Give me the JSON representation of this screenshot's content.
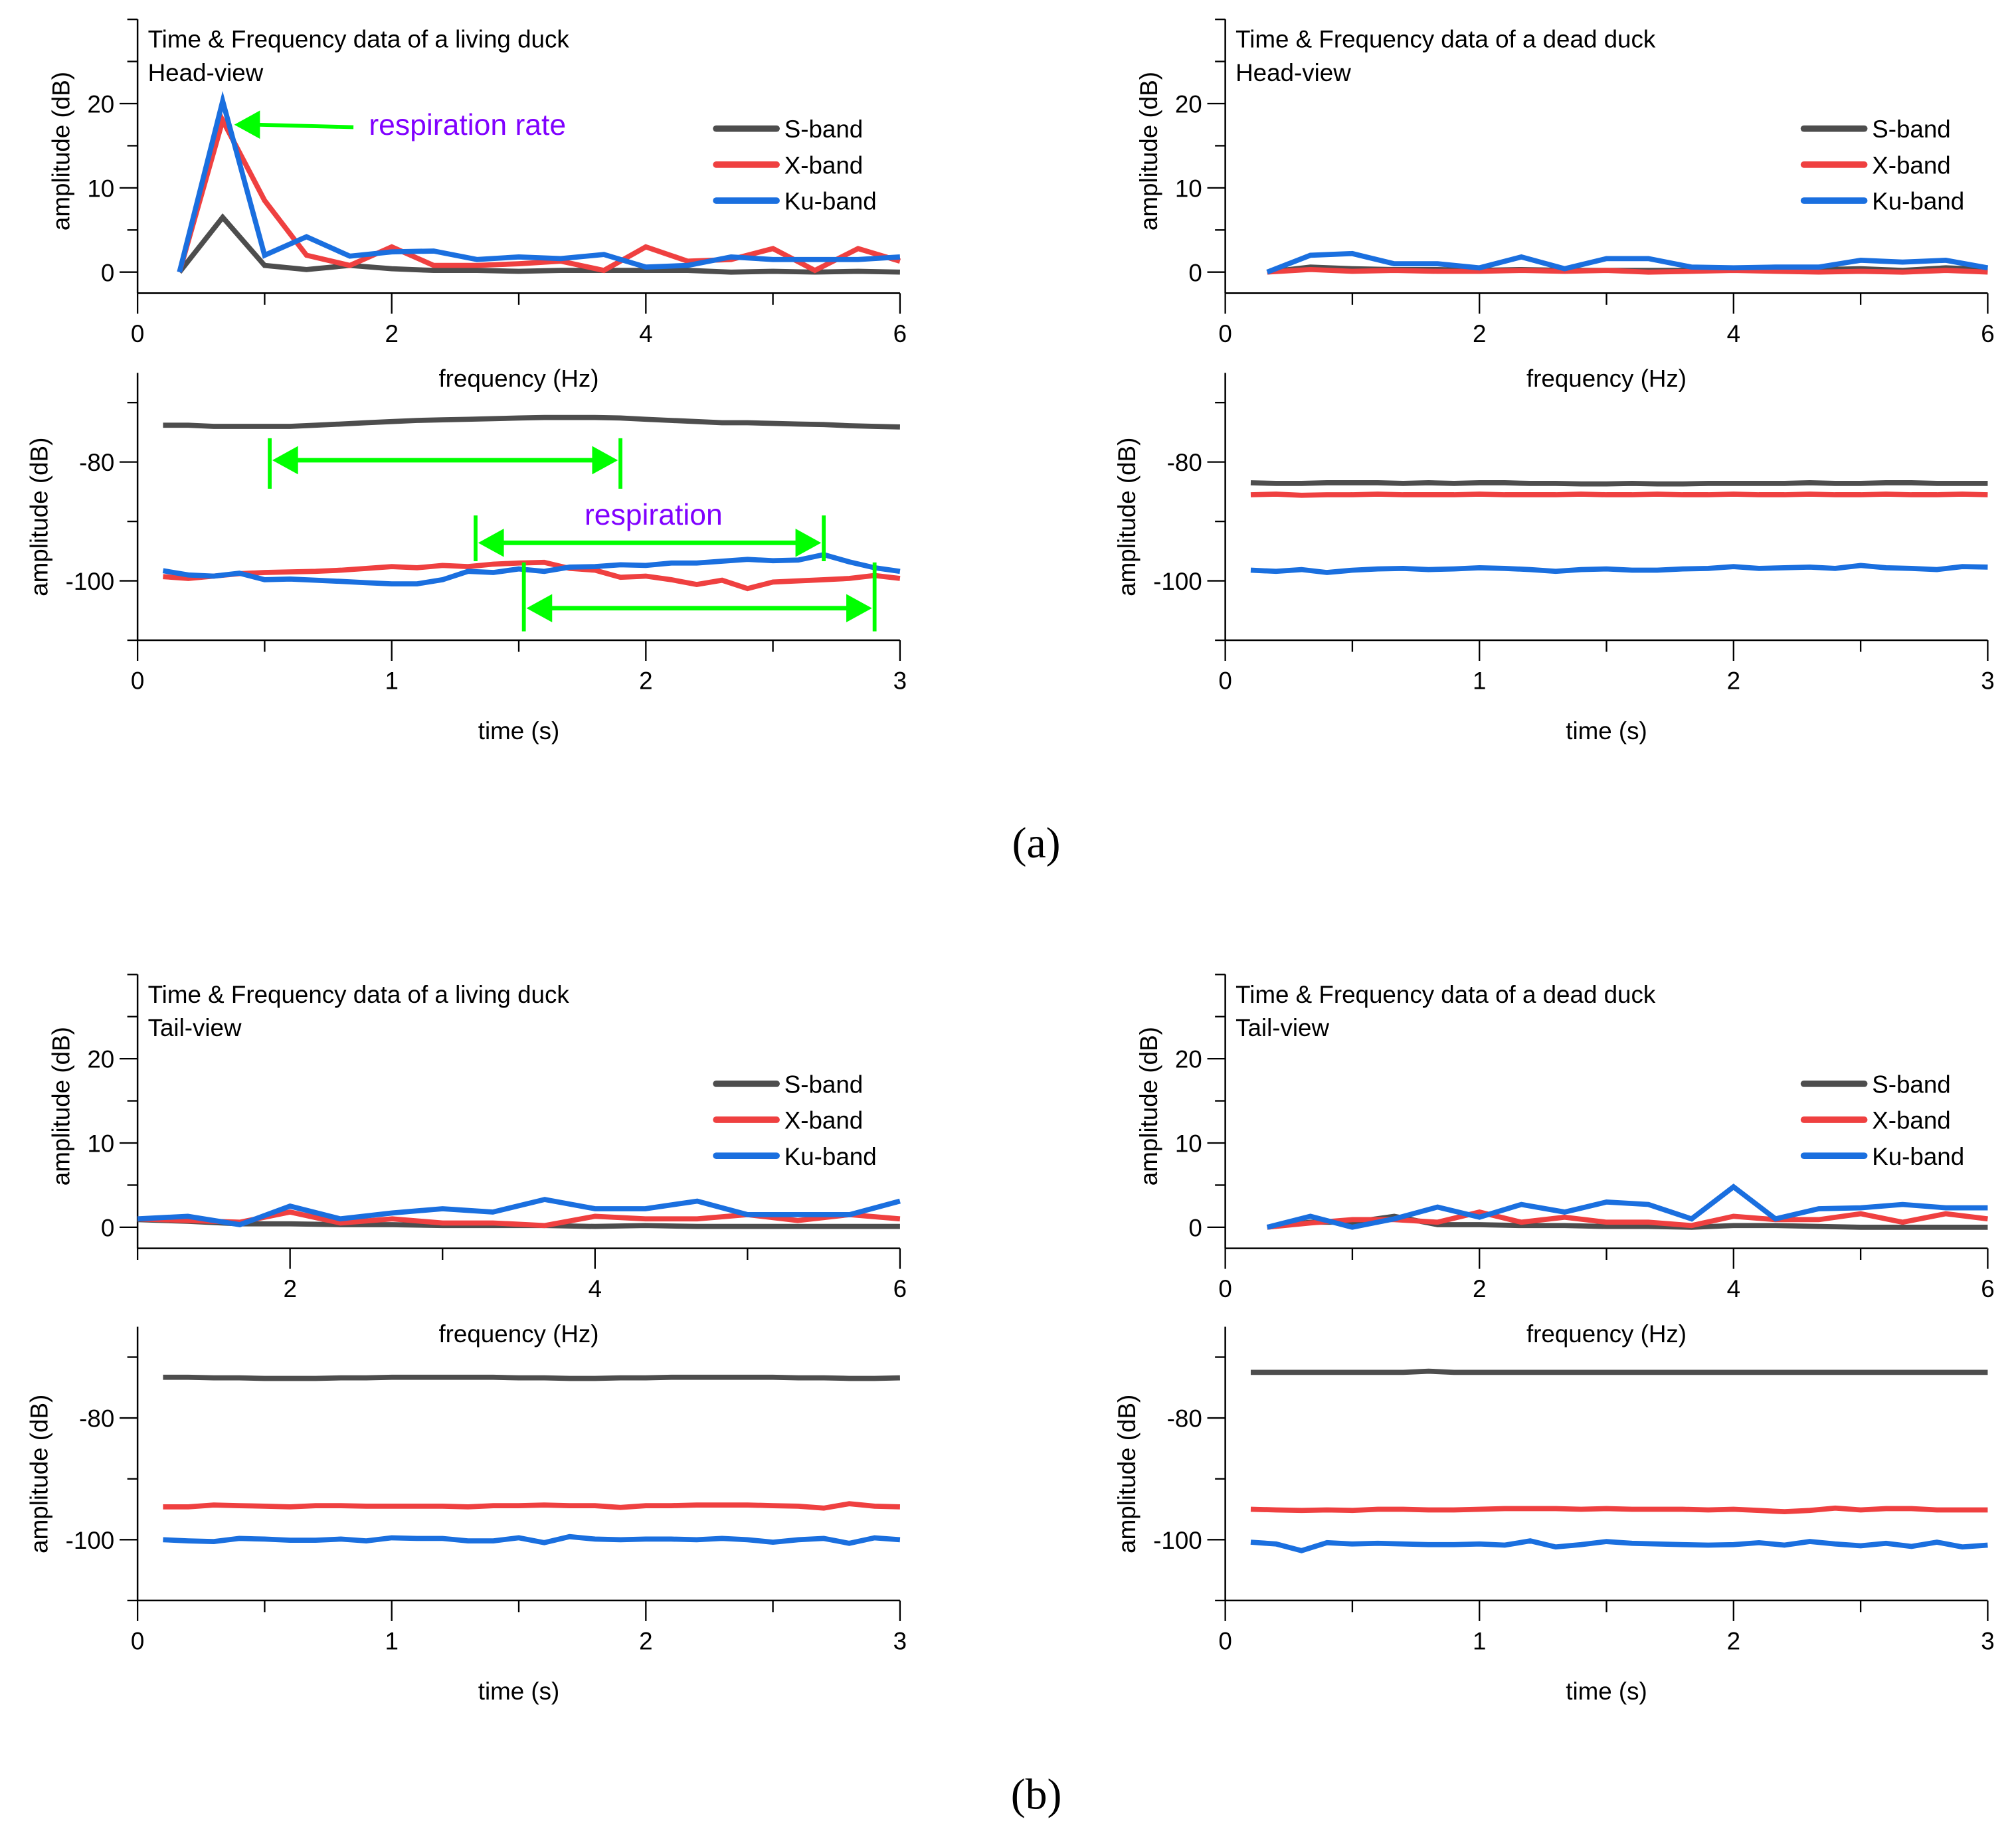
{
  "colors": {
    "S-band": "#4d4d4d",
    "X-band": "#ef4040",
    "Ku-band": "#1a6fdf",
    "annotation_arrow": "#00ff00",
    "annotation_text": "#8000ff"
  },
  "figure_labels": {
    "a": "(a)",
    "b": "(b)"
  },
  "chart_data": [
    {
      "id": "a-living-freq",
      "type": "line",
      "title": "Time & Frequency data of a living duck",
      "subtitle": "Head-view",
      "xlabel": "frequency (Hz)",
      "ylabel": "amplitude (dB)",
      "xlim": [
        0,
        6
      ],
      "ylim": [
        -2.5,
        30
      ],
      "xticks": [
        0,
        2,
        4,
        6
      ],
      "yticks": [
        0,
        10,
        20
      ],
      "legend": [
        "S-band",
        "X-band",
        "Ku-band"
      ],
      "legend_placement": "right",
      "x": [
        0.33,
        0.67,
        1,
        1.33,
        1.67,
        2,
        2.33,
        2.67,
        3,
        3.33,
        3.67,
        4,
        4.33,
        4.67,
        5,
        5.33,
        5.67,
        6
      ],
      "series": [
        {
          "name": "S-band",
          "values": [
            0,
            6.5,
            0.8,
            0.3,
            0.8,
            0.4,
            0.2,
            0.2,
            0.1,
            0.2,
            0.2,
            0.2,
            0.2,
            0,
            0.1,
            0,
            0.1,
            0
          ]
        },
        {
          "name": "X-band",
          "values": [
            0,
            18,
            8.5,
            2,
            0.8,
            3,
            0.8,
            0.8,
            1,
            1.3,
            0.2,
            3,
            1.3,
            1.5,
            2.8,
            0.2,
            2.8,
            1.3
          ]
        },
        {
          "name": "Ku-band",
          "values": [
            0,
            20.3,
            2,
            4.2,
            1.9,
            2.4,
            2.5,
            1.5,
            1.8,
            1.6,
            2.1,
            0.6,
            0.8,
            1.8,
            1.5,
            1.5,
            1.5,
            1.8
          ]
        }
      ],
      "annotations": [
        {
          "text": "respiration rate",
          "arrow_from": [
            1.8,
            17.2
          ],
          "arrow_to": [
            0.7,
            17.5
          ],
          "text_at": [
            1.8,
            17.2
          ]
        }
      ]
    },
    {
      "id": "a-living-time",
      "type": "line",
      "xlabel": "time (s)",
      "ylabel": "amplitude (dB)",
      "xlim": [
        0,
        3
      ],
      "ylim": [
        -110,
        -65
      ],
      "xticks": [
        0,
        1,
        2,
        3
      ],
      "yticks": [
        -80,
        -100
      ],
      "x": [
        0.1,
        0.2,
        0.3,
        0.4,
        0.5,
        0.6,
        0.7,
        0.8,
        0.9,
        1.0,
        1.1,
        1.2,
        1.3,
        1.4,
        1.5,
        1.6,
        1.7,
        1.8,
        1.9,
        2.0,
        2.1,
        2.2,
        2.3,
        2.4,
        2.5,
        2.6,
        2.7,
        2.8,
        2.9,
        3.0
      ],
      "series": [
        {
          "name": "S-band",
          "values": [
            -73.8,
            -73.8,
            -74,
            -74,
            -74,
            -74,
            -73.8,
            -73.6,
            -73.4,
            -73.2,
            -73,
            -72.9,
            -72.8,
            -72.7,
            -72.6,
            -72.5,
            -72.5,
            -72.5,
            -72.6,
            -72.8,
            -73,
            -73.2,
            -73.4,
            -73.4,
            -73.5,
            -73.6,
            -73.7,
            -73.9,
            -74,
            -74.1
          ]
        },
        {
          "name": "X-band",
          "values": [
            -99.3,
            -99.6,
            -99.2,
            -98.8,
            -98.6,
            -98.5,
            -98.4,
            -98.2,
            -97.9,
            -97.6,
            -97.8,
            -97.4,
            -97.6,
            -97.2,
            -97,
            -96.9,
            -97.9,
            -98.2,
            -99.4,
            -99.2,
            -99.8,
            -100.6,
            -99.9,
            -101.3,
            -100.2,
            -100,
            -99.8,
            -99.6,
            -99.1,
            -99.6
          ]
        },
        {
          "name": "Ku-band",
          "values": [
            -98.3,
            -99,
            -99.2,
            -98.7,
            -99.8,
            -99.7,
            -99.9,
            -100.1,
            -100.3,
            -100.5,
            -100.5,
            -99.8,
            -98.4,
            -98.6,
            -98,
            -98.4,
            -97.7,
            -97.6,
            -97.3,
            -97.4,
            -97,
            -97,
            -96.7,
            -96.4,
            -96.6,
            -96.5,
            -95.6,
            -96.8,
            -97.8,
            -98.4
          ]
        }
      ],
      "annotations": [
        {
          "text": "",
          "span": [
            0.52,
            1.9
          ],
          "y": -79.7,
          "bar_top": -76,
          "bar_bottom": -84.5
        },
        {
          "text": "respiration",
          "span": [
            1.33,
            2.7
          ],
          "y": -93.6,
          "bar_top": -89,
          "bar_bottom": -96.7
        },
        {
          "text": "",
          "span": [
            1.52,
            2.9
          ],
          "y": -104.6,
          "bar_top": -96.9,
          "bar_bottom": -108.5
        }
      ]
    },
    {
      "id": "a-dead-freq",
      "type": "line",
      "title": "Time & Frequency data of a dead duck",
      "subtitle": "Head-view",
      "xlabel": "frequency (Hz)",
      "ylabel": "amplitude (dB)",
      "xlim": [
        0,
        6
      ],
      "ylim": [
        -2.5,
        30
      ],
      "xticks": [
        0,
        2,
        4,
        6
      ],
      "yticks": [
        0,
        10,
        20
      ],
      "legend": [
        "S-band",
        "X-band",
        "Ku-band"
      ],
      "legend_placement": "right",
      "x": [
        0.33,
        0.67,
        1,
        1.33,
        1.67,
        2,
        2.33,
        2.67,
        3,
        3.33,
        3.67,
        4,
        4.33,
        4.67,
        5,
        5.33,
        5.67,
        6
      ],
      "series": [
        {
          "name": "S-band",
          "values": [
            0,
            0.6,
            0.4,
            0.3,
            0.3,
            0.2,
            0.3,
            0.2,
            0.2,
            0.2,
            0.2,
            0.3,
            0.2,
            0.3,
            0.4,
            0.2,
            0.5,
            0.3
          ]
        },
        {
          "name": "X-band",
          "values": [
            0,
            0.3,
            0.1,
            0.2,
            0.1,
            0.1,
            0.2,
            0.1,
            0.2,
            0,
            0.1,
            0.2,
            0.1,
            0,
            0.1,
            0,
            0.2,
            0
          ]
        },
        {
          "name": "Ku-band",
          "values": [
            0,
            2,
            2.2,
            1,
            1,
            0.5,
            1.8,
            0.4,
            1.6,
            1.6,
            0.6,
            0.5,
            0.6,
            0.6,
            1.4,
            1.2,
            1.4,
            0.5
          ]
        }
      ]
    },
    {
      "id": "a-dead-time",
      "type": "line",
      "xlabel": "time (s)",
      "ylabel": "amplitude (dB)",
      "xlim": [
        0,
        3
      ],
      "ylim": [
        -110,
        -65
      ],
      "xticks": [
        0,
        1,
        2,
        3
      ],
      "yticks": [
        -80,
        -100
      ],
      "x": [
        0.1,
        0.2,
        0.3,
        0.4,
        0.5,
        0.6,
        0.7,
        0.8,
        0.9,
        1.0,
        1.1,
        1.2,
        1.3,
        1.4,
        1.5,
        1.6,
        1.7,
        1.8,
        1.9,
        2.0,
        2.1,
        2.2,
        2.3,
        2.4,
        2.5,
        2.6,
        2.7,
        2.8,
        2.9,
        3.0
      ],
      "series": [
        {
          "name": "S-band",
          "values": [
            -83.5,
            -83.6,
            -83.6,
            -83.5,
            -83.5,
            -83.5,
            -83.6,
            -83.5,
            -83.6,
            -83.5,
            -83.5,
            -83.6,
            -83.6,
            -83.7,
            -83.7,
            -83.6,
            -83.7,
            -83.7,
            -83.6,
            -83.6,
            -83.6,
            -83.6,
            -83.5,
            -83.6,
            -83.6,
            -83.5,
            -83.5,
            -83.6,
            -83.6,
            -83.6
          ]
        },
        {
          "name": "X-band",
          "values": [
            -85.5,
            -85.4,
            -85.6,
            -85.5,
            -85.5,
            -85.4,
            -85.5,
            -85.5,
            -85.5,
            -85.4,
            -85.5,
            -85.5,
            -85.5,
            -85.4,
            -85.5,
            -85.5,
            -85.4,
            -85.5,
            -85.5,
            -85.4,
            -85.5,
            -85.5,
            -85.4,
            -85.5,
            -85.5,
            -85.4,
            -85.5,
            -85.5,
            -85.4,
            -85.5
          ]
        },
        {
          "name": "Ku-band",
          "values": [
            -98.2,
            -98.4,
            -98.1,
            -98.6,
            -98.2,
            -98,
            -97.9,
            -98.1,
            -98,
            -97.8,
            -97.9,
            -98.1,
            -98.4,
            -98.1,
            -98,
            -98.2,
            -98.2,
            -98,
            -97.9,
            -97.6,
            -97.9,
            -97.8,
            -97.7,
            -97.9,
            -97.4,
            -97.8,
            -97.9,
            -98.1,
            -97.6,
            -97.7
          ]
        }
      ]
    },
    {
      "id": "b-living-freq",
      "type": "line",
      "title": "Time & Frequency data of a living duck",
      "subtitle": "Tail-view",
      "xlabel": "frequency (Hz)",
      "ylabel": "amplitude (dB)",
      "xlim": [
        1,
        6
      ],
      "ylim": [
        -2.5,
        30
      ],
      "xticks": [
        2,
        4,
        6
      ],
      "yticks": [
        0,
        10,
        20
      ],
      "legend": [
        "S-band",
        "X-band",
        "Ku-band"
      ],
      "legend_placement": "right",
      "x": [
        1,
        1.33,
        1.67,
        2,
        2.33,
        2.67,
        3,
        3.33,
        3.67,
        4,
        4.33,
        4.67,
        5,
        5.33,
        5.67,
        6
      ],
      "series": [
        {
          "name": "S-band",
          "values": [
            0.9,
            0.7,
            0.4,
            0.4,
            0.3,
            0.3,
            0.2,
            0.2,
            0.2,
            0.1,
            0.2,
            0.1,
            0.1,
            0.1,
            0.1,
            0.1
          ]
        },
        {
          "name": "X-band",
          "values": [
            1,
            0.8,
            0.6,
            1.8,
            0.5,
            1,
            0.5,
            0.5,
            0.2,
            1.3,
            1,
            1,
            1.5,
            0.8,
            1.5,
            1
          ]
        },
        {
          "name": "Ku-band",
          "values": [
            1,
            1.3,
            0.3,
            2.5,
            1,
            1.7,
            2.2,
            1.8,
            3.3,
            2.2,
            2.2,
            3.1,
            1.5,
            1.5,
            1.5,
            3.1
          ]
        }
      ]
    },
    {
      "id": "b-living-time",
      "type": "line",
      "xlabel": "time (s)",
      "ylabel": "amplitude (dB)",
      "xlim": [
        0,
        3
      ],
      "ylim": [
        -110,
        -65
      ],
      "xticks": [
        0,
        1,
        2,
        3
      ],
      "yticks": [
        -80,
        -100
      ],
      "x": [
        0.1,
        0.2,
        0.3,
        0.4,
        0.5,
        0.6,
        0.7,
        0.8,
        0.9,
        1.0,
        1.1,
        1.2,
        1.3,
        1.4,
        1.5,
        1.6,
        1.7,
        1.8,
        1.9,
        2.0,
        2.1,
        2.2,
        2.3,
        2.4,
        2.5,
        2.6,
        2.7,
        2.8,
        2.9,
        3.0
      ],
      "series": [
        {
          "name": "S-band",
          "values": [
            -73.3,
            -73.3,
            -73.4,
            -73.4,
            -73.5,
            -73.5,
            -73.5,
            -73.4,
            -73.4,
            -73.3,
            -73.3,
            -73.3,
            -73.3,
            -73.3,
            -73.4,
            -73.4,
            -73.5,
            -73.5,
            -73.4,
            -73.4,
            -73.3,
            -73.3,
            -73.3,
            -73.3,
            -73.3,
            -73.4,
            -73.4,
            -73.5,
            -73.5,
            -73.4
          ]
        },
        {
          "name": "X-band",
          "values": [
            -94.6,
            -94.6,
            -94.3,
            -94.4,
            -94.5,
            -94.6,
            -94.4,
            -94.4,
            -94.5,
            -94.5,
            -94.5,
            -94.5,
            -94.6,
            -94.4,
            -94.4,
            -94.3,
            -94.4,
            -94.4,
            -94.7,
            -94.4,
            -94.4,
            -94.3,
            -94.3,
            -94.3,
            -94.4,
            -94.5,
            -94.8,
            -94.1,
            -94.5,
            -94.6
          ]
        },
        {
          "name": "Ku-band",
          "values": [
            -100,
            -100.2,
            -100.3,
            -99.8,
            -99.9,
            -100.1,
            -100.1,
            -99.9,
            -100.2,
            -99.7,
            -99.8,
            -99.8,
            -100.2,
            -100.2,
            -99.7,
            -100.5,
            -99.5,
            -99.9,
            -100,
            -99.9,
            -99.9,
            -100,
            -99.8,
            -100,
            -100.4,
            -100,
            -99.8,
            -100.6,
            -99.7,
            -100
          ]
        }
      ]
    },
    {
      "id": "b-dead-freq",
      "type": "line",
      "title": "Time & Frequency data of a dead duck",
      "subtitle": "Tail-view",
      "xlabel": "frequency (Hz)",
      "ylabel": "amplitude (dB)",
      "xlim": [
        0,
        6
      ],
      "ylim": [
        -2.5,
        30
      ],
      "xticks": [
        0,
        2,
        4,
        6
      ],
      "yticks": [
        0,
        10,
        20
      ],
      "legend": [
        "S-band",
        "X-band",
        "Ku-band"
      ],
      "legend_placement": "right",
      "x": [
        0.33,
        0.67,
        1,
        1.33,
        1.67,
        2,
        2.33,
        2.67,
        3,
        3.33,
        3.67,
        4,
        4.33,
        4.67,
        5,
        5.33,
        5.67,
        6
      ],
      "series": [
        {
          "name": "S-band",
          "values": [
            0,
            0.6,
            0.6,
            1.3,
            0.3,
            0.3,
            0.2,
            0.2,
            0.1,
            0.1,
            0,
            0.2,
            0.2,
            0.1,
            0,
            0,
            0,
            0
          ]
        },
        {
          "name": "X-band",
          "values": [
            0,
            0.5,
            0.9,
            0.9,
            0.6,
            1.8,
            0.6,
            1.2,
            0.6,
            0.6,
            0.2,
            1.3,
            0.9,
            0.9,
            1.6,
            0.6,
            1.6,
            1
          ]
        },
        {
          "name": "Ku-band",
          "values": [
            0,
            1.3,
            0,
            1,
            2.4,
            1.2,
            2.7,
            1.8,
            3,
            2.7,
            1,
            4.8,
            1,
            2.2,
            2.3,
            2.7,
            2.3,
            2.3
          ]
        }
      ]
    },
    {
      "id": "b-dead-time",
      "type": "line",
      "xlabel": "time (s)",
      "ylabel": "amplitude (dB)",
      "xlim": [
        0,
        3
      ],
      "ylim": [
        -110,
        -65
      ],
      "xticks": [
        0,
        1,
        2,
        3
      ],
      "yticks": [
        -80,
        -100
      ],
      "x": [
        0.1,
        0.2,
        0.3,
        0.4,
        0.5,
        0.6,
        0.7,
        0.8,
        0.9,
        1.0,
        1.1,
        1.2,
        1.3,
        1.4,
        1.5,
        1.6,
        1.7,
        1.8,
        1.9,
        2.0,
        2.1,
        2.2,
        2.3,
        2.4,
        2.5,
        2.6,
        2.7,
        2.8,
        2.9,
        3.0
      ],
      "series": [
        {
          "name": "S-band",
          "values": [
            -72.5,
            -72.5,
            -72.5,
            -72.5,
            -72.5,
            -72.5,
            -72.5,
            -72.3,
            -72.5,
            -72.5,
            -72.5,
            -72.5,
            -72.5,
            -72.5,
            -72.5,
            -72.5,
            -72.5,
            -72.5,
            -72.5,
            -72.5,
            -72.5,
            -72.5,
            -72.5,
            -72.5,
            -72.5,
            -72.5,
            -72.5,
            -72.5,
            -72.5,
            -72.5
          ]
        },
        {
          "name": "X-band",
          "values": [
            -95,
            -95.1,
            -95.2,
            -95.1,
            -95.2,
            -95,
            -95,
            -95.1,
            -95.1,
            -95,
            -94.9,
            -94.9,
            -94.9,
            -95,
            -94.9,
            -95,
            -95,
            -95,
            -95.1,
            -95,
            -95.2,
            -95.4,
            -95.2,
            -94.8,
            -95.1,
            -94.9,
            -94.9,
            -95.1,
            -95.1,
            -95.1
          ]
        },
        {
          "name": "Ku-band",
          "values": [
            -100.4,
            -100.7,
            -101.8,
            -100.5,
            -100.7,
            -100.6,
            -100.7,
            -100.8,
            -100.8,
            -100.7,
            -100.9,
            -100.2,
            -101.2,
            -100.8,
            -100.3,
            -100.6,
            -100.7,
            -100.8,
            -100.9,
            -100.8,
            -100.5,
            -100.9,
            -100.3,
            -100.7,
            -101,
            -100.6,
            -101.1,
            -100.4,
            -101.2,
            -100.9
          ]
        }
      ]
    }
  ]
}
